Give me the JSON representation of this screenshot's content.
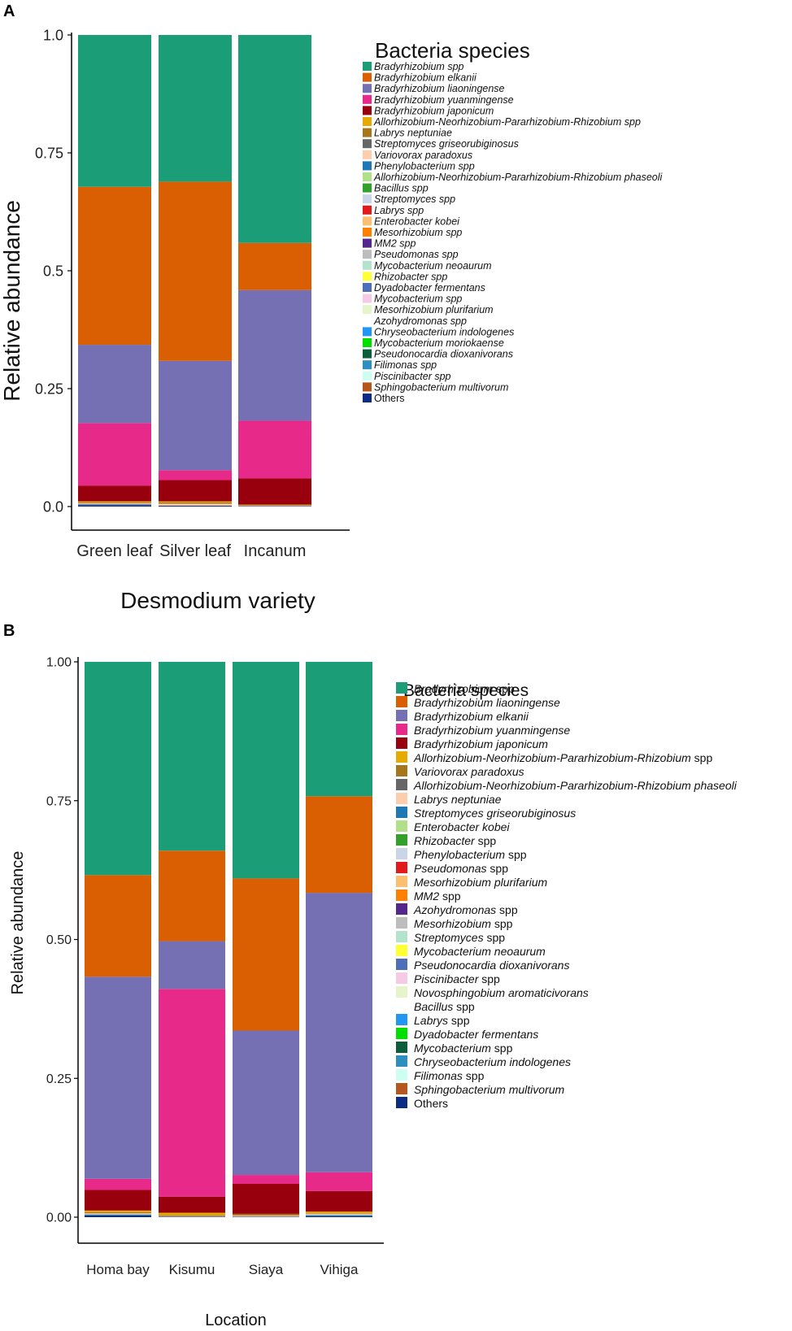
{
  "chart_data": [
    {
      "panel": "A",
      "type": "bar",
      "stacked": true,
      "xlabel": "Desmodium variety",
      "ylabel": "Relative abundance",
      "ylim": [
        0,
        1
      ],
      "yticks": [
        "0.0",
        "0.25",
        "0.5",
        "0.75",
        "1.0"
      ],
      "categories": [
        "Green leaf",
        "Silver leaf",
        "Incanum"
      ],
      "legend_title": "Bacteria species",
      "legend": [
        {
          "name": "Bradyrhizobium spp",
          "color": "#1b9e77"
        },
        {
          "name": "Bradyrhizobium elkanii",
          "color": "#d95f02"
        },
        {
          "name": "Bradyrhizobium liaoningense",
          "color": "#7570b3"
        },
        {
          "name": "Bradyrhizobium yuanmingense",
          "color": "#e7298a"
        },
        {
          "name": "Bradyrhizobium japonicum",
          "color": "#99000d"
        },
        {
          "name": "Allorhizobium-Neorhizobium-Pararhizobium-Rhizobium spp",
          "color": "#e6ab02"
        },
        {
          "name": "Labrys neptuniae",
          "color": "#a6761d"
        },
        {
          "name": "Streptomyces griseorubiginosus",
          "color": "#666666"
        },
        {
          "name": "Variovorax paradoxus",
          "color": "#fdcdac"
        },
        {
          "name": "Phenylobacterium spp",
          "color": "#1f78b4"
        },
        {
          "name": "Allorhizobium-Neorhizobium-Pararhizobium-Rhizobium phaseoli",
          "color": "#b2df8a"
        },
        {
          "name": "Bacillus spp",
          "color": "#33a02c"
        },
        {
          "name": "Streptomyces spp",
          "color": "#cbd5e8"
        },
        {
          "name": "Labrys spp",
          "color": "#e31a1c"
        },
        {
          "name": "Enterobacter kobei",
          "color": "#fdbf6f"
        },
        {
          "name": "Mesorhizobium spp",
          "color": "#ff7f00"
        },
        {
          "name": "MM2 spp",
          "color": "#54278f"
        },
        {
          "name": "Pseudomonas spp",
          "color": "#bdbdbd"
        },
        {
          "name": "Mycobacterium neoaurum",
          "color": "#b3e2cd"
        },
        {
          "name": "Rhizobacter spp",
          "color": "#ffff33"
        },
        {
          "name": "Dyadobacter fermentans",
          "color": "#4e6eb7"
        },
        {
          "name": "Mycobacterium spp",
          "color": "#f4cae4"
        },
        {
          "name": "Mesorhizobium plurifarium",
          "color": "#e6f5c9"
        },
        {
          "name": "Azohydromonas spp",
          "color": "#ffffff"
        },
        {
          "name": "Chryseobacterium indologenes",
          "color": "#2196f3"
        },
        {
          "name": "Mycobacterium moriokaense",
          "color": "#00e000"
        },
        {
          "name": "Pseudonocardia dioxanivorans",
          "color": "#0b5d3c"
        },
        {
          "name": "Filimonas spp",
          "color": "#2c8fbf"
        },
        {
          "name": "Piscinibacter spp",
          "color": "#ccfff2"
        },
        {
          "name": "Sphingobacterium multivorum",
          "color": "#b5561c"
        },
        {
          "name": "Others",
          "color": "#0c2c84"
        }
      ],
      "series": [
        {
          "name": "Others",
          "values": [
            0.003,
            0.002,
            0.001
          ],
          "color": "#0c2c84"
        },
        {
          "name": "Dyadobacter fermentans",
          "values": [
            0.002,
            0.0,
            0.0
          ],
          "color": "#4e6eb7"
        },
        {
          "name": "Variovorax paradoxus",
          "values": [
            0.002,
            0.004,
            0.001
          ],
          "color": "#fdcdac"
        },
        {
          "name": "Labrys neptuniae",
          "values": [
            0.002,
            0.003,
            0.001
          ],
          "color": "#a6761d"
        },
        {
          "name": "Allorhizobium-Neorhizobium-Pararhizobium-Rhizobium spp",
          "values": [
            0.002,
            0.002,
            0.001
          ],
          "color": "#e6ab02"
        },
        {
          "name": "Bradyrhizobium japonicum",
          "values": [
            0.033,
            0.045,
            0.056
          ],
          "color": "#99000d"
        },
        {
          "name": "Bradyrhizobium yuanmingense",
          "values": [
            0.133,
            0.021,
            0.122
          ],
          "color": "#e7298a"
        },
        {
          "name": "Bradyrhizobium liaoningense",
          "values": [
            0.166,
            0.232,
            0.277
          ],
          "color": "#7570b3"
        },
        {
          "name": "Bradyrhizobium elkanii",
          "values": [
            0.335,
            0.38,
            0.1
          ],
          "color": "#d95f02"
        },
        {
          "name": "Bradyrhizobium spp",
          "values": [
            0.322,
            0.311,
            0.441
          ],
          "color": "#1b9e77"
        }
      ]
    },
    {
      "panel": "B",
      "type": "bar",
      "stacked": true,
      "xlabel": "Location",
      "ylabel": "Relative abundance",
      "ylim": [
        0,
        1
      ],
      "yticks": [
        "0.00",
        "0.25",
        "0.50",
        "0.75",
        "1.00"
      ],
      "categories": [
        "Homa bay",
        "Kisumu",
        "Siaya",
        "Vihiga"
      ],
      "legend_title": "Bacteria species",
      "legend": [
        {
          "name": "Bradyrhizobium",
          "suffix": " spp",
          "color": "#1b9e77"
        },
        {
          "name": "Bradyrhizobium liaoningense",
          "suffix": "",
          "color": "#d95f02"
        },
        {
          "name": "Bradyrhizobium elkanii",
          "suffix": "",
          "color": "#7570b3"
        },
        {
          "name": "Bradyrhizobium yuanmingense",
          "suffix": "",
          "color": "#e7298a"
        },
        {
          "name": "Bradyrhizobium japonicum",
          "suffix": "",
          "color": "#99000d"
        },
        {
          "name": "Allorhizobium-Neorhizobium-Pararhizobium-Rhizobium",
          "suffix": " spp",
          "color": "#e6ab02"
        },
        {
          "name": "Variovorax paradoxus",
          "suffix": "",
          "color": "#a6761d"
        },
        {
          "name": "Allorhizobium-Neorhizobium-Pararhizobium-Rhizobium phaseoli",
          "suffix": "",
          "color": "#666666"
        },
        {
          "name": "Labrys neptuniae",
          "suffix": "",
          "color": "#fdcdac"
        },
        {
          "name": "Streptomyces griseorubiginosus",
          "suffix": "",
          "color": "#1f78b4"
        },
        {
          "name": "Enterobacter kobei",
          "suffix": "",
          "color": "#b2df8a"
        },
        {
          "name": "Rhizobacter",
          "suffix": " spp",
          "color": "#33a02c"
        },
        {
          "name": "Phenylobacterium",
          "suffix": " spp",
          "color": "#cbd5e8"
        },
        {
          "name": "Pseudomonas",
          "suffix": " spp",
          "color": "#e31a1c"
        },
        {
          "name": "Mesorhizobium plurifarium",
          "suffix": "",
          "color": "#fdbf6f"
        },
        {
          "name": "MM2",
          "suffix": " spp",
          "color": "#ff7f00"
        },
        {
          "name": "Azohydromonas",
          "suffix": " spp",
          "color": "#54278f"
        },
        {
          "name": "Mesorhizobium",
          "suffix": " spp",
          "color": "#bdbdbd"
        },
        {
          "name": "Streptomyces",
          "suffix": " spp",
          "color": "#b3e2cd"
        },
        {
          "name": "Mycobacterium neoaurum",
          "suffix": "",
          "color": "#ffff33"
        },
        {
          "name": "Pseudonocardia dioxanivorans",
          "suffix": "",
          "color": "#4e6eb7"
        },
        {
          "name": "Piscinibacter",
          "suffix": " spp",
          "color": "#f4cae4"
        },
        {
          "name": "Novosphingobium aromaticivorans",
          "suffix": "",
          "color": "#e6f5c9"
        },
        {
          "name": "Bacillus",
          "suffix": " spp",
          "color": "#ffffff"
        },
        {
          "name": "Labrys",
          "suffix": " spp",
          "color": "#2196f3"
        },
        {
          "name": "Dyadobacter fermentans",
          "suffix": "",
          "color": "#00e000"
        },
        {
          "name": "Mycobacterium",
          "suffix": " spp",
          "color": "#0b5d3c"
        },
        {
          "name": "Chryseobacterium indologenes",
          "suffix": "",
          "color": "#2c8fbf"
        },
        {
          "name": "Filimonas",
          "suffix": " spp",
          "color": "#ccfff2"
        },
        {
          "name": "Sphingobacterium multivorum",
          "suffix": "",
          "color": "#b5561c"
        },
        {
          "name": "Others",
          "suffix": "",
          "color": "#0c2c84"
        }
      ],
      "series": [
        {
          "name": "Others",
          "values": [
            0.003,
            0.001,
            0.001,
            0.002
          ],
          "color": "#0c2c84"
        },
        {
          "name": "Filimonas spp",
          "values": [
            0.002,
            0.0,
            0.0,
            0.002
          ],
          "color": "#2c8fbf"
        },
        {
          "name": "Labrys neptuniae",
          "values": [
            0.002,
            0.001,
            0.002,
            0.002
          ],
          "color": "#fdcdac"
        },
        {
          "name": "Variovorax paradoxus",
          "values": [
            0.002,
            0.002,
            0.003,
            0.001
          ],
          "color": "#a6761d"
        },
        {
          "name": "Allorhizobium-Neorhizobium-Pararhizobium-Rhizobium spp",
          "values": [
            0.003,
            0.004,
            0.0,
            0.003
          ],
          "color": "#e6ab02"
        },
        {
          "name": "Bradyrhizobium japonicum",
          "values": [
            0.037,
            0.029,
            0.054,
            0.037
          ],
          "color": "#99000d"
        },
        {
          "name": "Bradyrhizobium yuanmingense",
          "values": [
            0.02,
            0.374,
            0.016,
            0.034
          ],
          "color": "#e7298a"
        },
        {
          "name": "Bradyrhizobium elkanii",
          "values": [
            0.364,
            0.086,
            0.26,
            0.503
          ],
          "color": "#7570b3"
        },
        {
          "name": "Bradyrhizobium liaoningense",
          "values": [
            0.183,
            0.163,
            0.274,
            0.174
          ],
          "color": "#d95f02"
        },
        {
          "name": "Bradyrhizobium spp",
          "values": [
            0.384,
            0.34,
            0.39,
            0.242
          ],
          "color": "#1b9e77"
        }
      ]
    }
  ]
}
